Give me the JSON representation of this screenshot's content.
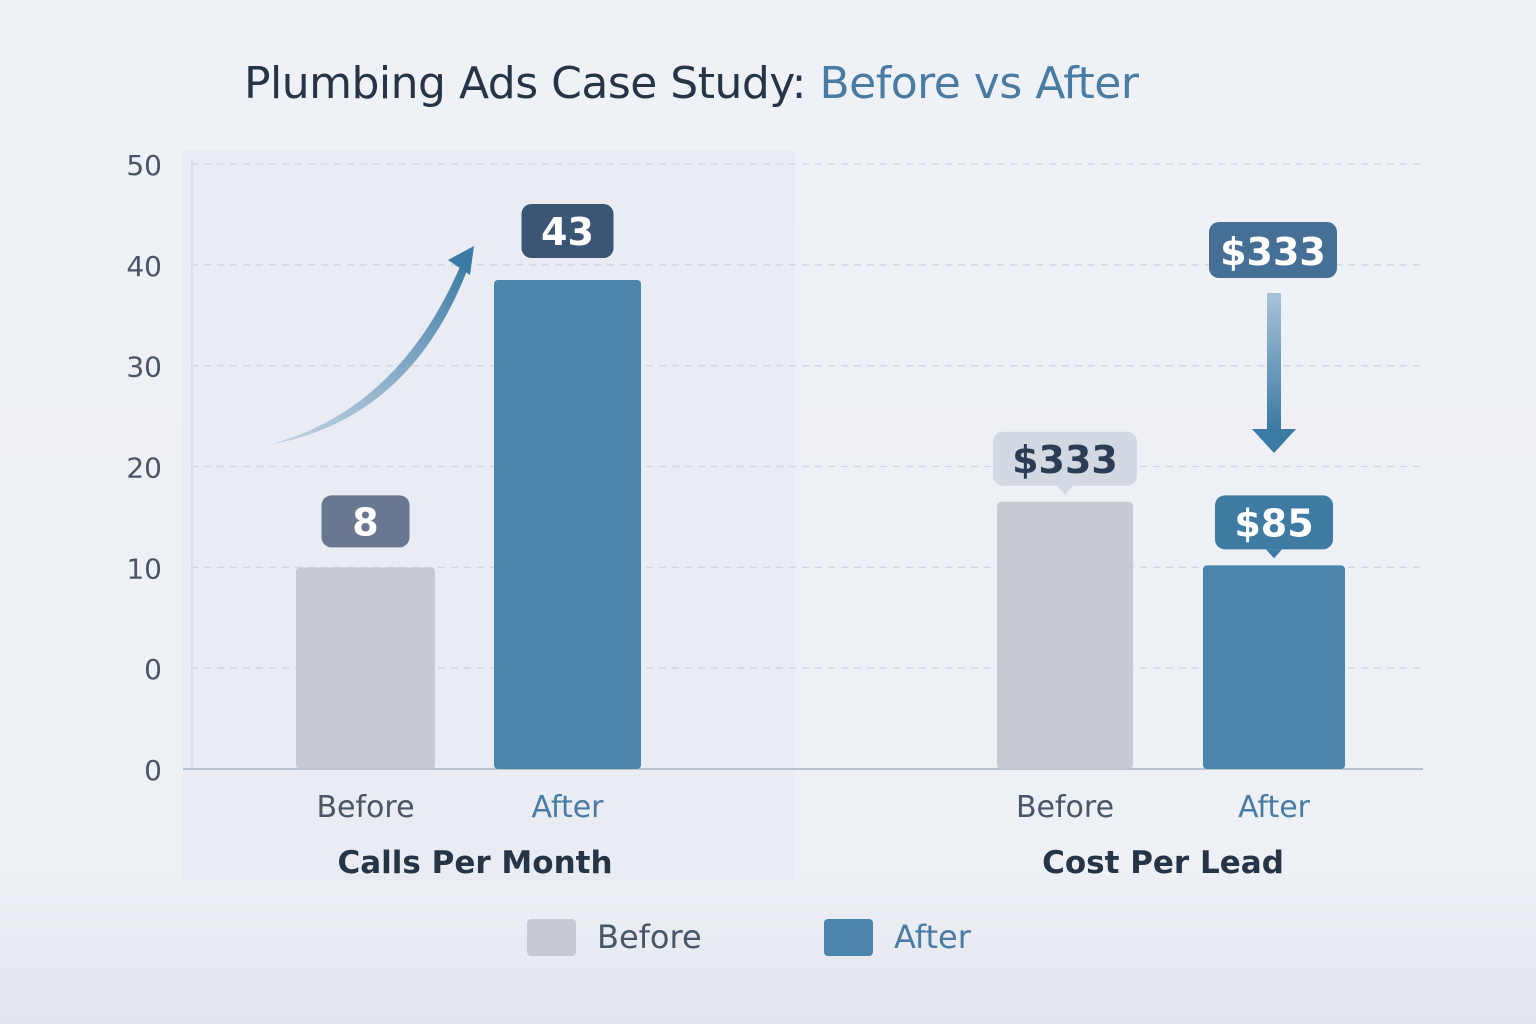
{
  "title": {
    "main": "Plumbing Ads Case Study: ",
    "highlight": "Before vs After"
  },
  "colors": {
    "before": "#c7cad1",
    "after": "#4b85ab",
    "title": "#263447",
    "accent": "#4a7ca3",
    "label_dark": "#3b5675",
    "label_gray": "#687890"
  },
  "chart_data": {
    "type": "bar",
    "ylim": [
      0,
      60
    ],
    "y_tick_labels": [
      "0",
      "0",
      "10",
      "20",
      "30",
      "40",
      "50"
    ],
    "grid": true,
    "legend_placement": "bottom",
    "legend": [
      {
        "name": "Before",
        "color": "#c7cad1"
      },
      {
        "name": "After",
        "color": "#4b85ab"
      }
    ],
    "groups": [
      {
        "title": "Calls Per Month",
        "categories": [
          "Before",
          "After"
        ],
        "values": [
          20,
          48.5
        ],
        "data_labels": [
          "8",
          "43"
        ],
        "trend": "up"
      },
      {
        "title": "Cost Per Lead",
        "categories": [
          "Before",
          "After"
        ],
        "values": [
          26.5,
          20.2
        ],
        "data_labels": [
          "$333",
          "$85"
        ],
        "extra_label": "$333",
        "trend": "down"
      }
    ]
  }
}
